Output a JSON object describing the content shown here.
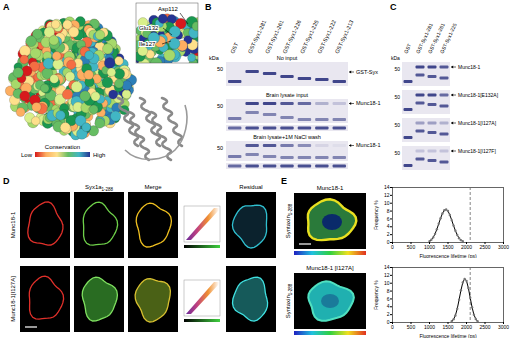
{
  "panels": {
    "A": {
      "letter": "A",
      "residues": [
        "Asp112",
        "Glu132",
        "Ile127"
      ],
      "colorbar": {
        "title": "Conservation",
        "low": "Low",
        "high": "High"
      }
    },
    "B": {
      "letter": "B",
      "unit": "kDa",
      "lanes": [
        "GST",
        "GST-Syx1-281",
        "GST-Syx1-261",
        "GST-Syx1-226",
        "GST-Syx1-225",
        "GST-Syx1-222",
        "GST-Syx1-213"
      ],
      "gels": [
        {
          "caption": "No input",
          "marker": 50,
          "band": "GST-Syx"
        },
        {
          "caption": "Brain lysate input",
          "marker": 50,
          "band": "Munc18-1"
        },
        {
          "caption": "Brain lysate+1M NaCl wash",
          "marker": 50,
          "band": "Munc18-1"
        }
      ]
    },
    "C": {
      "letter": "C",
      "unit": "kDa",
      "lanes": [
        "GST",
        "GST-Syx1-281",
        "GST-Syx1-261",
        "GST-Syx1-225"
      ],
      "gels": [
        {
          "marker": 50,
          "band": "Munc18-1"
        },
        {
          "marker": 50,
          "band": "Munc18-1[E132A]"
        },
        {
          "marker": 50,
          "band": "Munc18-1[I127A]"
        },
        {
          "marker": 50,
          "band": "Munc18-1[I127F]"
        }
      ]
    },
    "D": {
      "letter": "D",
      "columns": [
        {
          "text": "Syx1a",
          "sub": "1-288"
        },
        "Merge",
        "Residual"
      ],
      "rows": [
        "Munc18-1",
        "Munc18-1[I127A]"
      ]
    },
    "E": {
      "letter": "E",
      "images": [
        {
          "title": "Munc18-1",
          "side": {
            "text": "Syntaxin",
            "sub": "1-288"
          }
        },
        {
          "title": "Munc18-1 [I127A]",
          "side": {
            "text": "Syntaxin",
            "sub": "1-288"
          }
        }
      ]
    }
  },
  "chart_data": [
    {
      "type": "scatter",
      "marker": "circle",
      "line_style": "solid",
      "xlabel": "Fluorescence lifetime (ps)",
      "ylabel": "Frequency %",
      "x": [
        1000,
        1050,
        1100,
        1150,
        1200,
        1250,
        1300,
        1350,
        1400,
        1450,
        1500,
        1550,
        1600,
        1650,
        1700,
        1750,
        1800,
        1850,
        1900
      ],
      "values": [
        0.3,
        0.7,
        1.3,
        2.2,
        3.4,
        4.8,
        6.2,
        7.4,
        8.2,
        8.4,
        8.0,
        7.0,
        5.7,
        4.3,
        3.0,
        1.9,
        1.1,
        0.6,
        0.3
      ],
      "xlim": [
        0,
        3000
      ],
      "xticks": [
        0,
        500,
        1000,
        1500,
        2000,
        2500,
        3000
      ],
      "ylim": [
        0,
        14
      ],
      "yticks": [
        0,
        2,
        4,
        6,
        8,
        10,
        12,
        14
      ],
      "reference_x": 2100
    },
    {
      "type": "scatter",
      "marker": "circle",
      "line_style": "solid",
      "xlabel": "Fluorescence lifetime (ps)",
      "ylabel": "Frequency %",
      "x": [
        1600,
        1650,
        1700,
        1750,
        1800,
        1850,
        1900,
        1950,
        2000,
        2050,
        2100,
        2150,
        2200,
        2250,
        2300
      ],
      "values": [
        0.3,
        0.8,
        1.8,
        3.5,
        5.8,
        8.2,
        10.2,
        11.1,
        10.6,
        8.8,
        6.3,
        3.9,
        2.0,
        0.9,
        0.3
      ],
      "xlim": [
        0,
        3000
      ],
      "xticks": [
        0,
        500,
        1000,
        1500,
        2000,
        2500,
        3000
      ],
      "ylim": [
        0,
        14
      ],
      "yticks": [
        0,
        2,
        4,
        6,
        8,
        10,
        12,
        14
      ],
      "reference_x": 2100
    }
  ]
}
